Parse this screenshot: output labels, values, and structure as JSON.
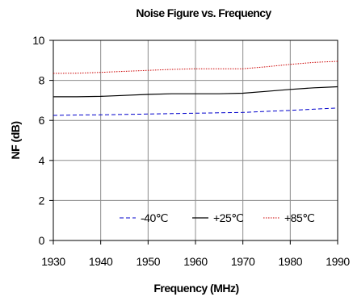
{
  "chart_data": {
    "type": "line",
    "title": "Noise Figure vs. Frequency",
    "xlabel": "Frequency (MHz)",
    "ylabel": "NF (dB)",
    "xlim": [
      1930,
      1990
    ],
    "ylim": [
      0,
      10
    ],
    "xticks": [
      "1930",
      "1940",
      "1950",
      "1960",
      "1970",
      "1980",
      "1990"
    ],
    "yticks": [
      "0",
      "2",
      "4",
      "6",
      "8",
      "10"
    ],
    "grid": true,
    "legend_position": "bottom-right",
    "series": [
      {
        "name": "-40℃",
        "color": "#0000cc",
        "style": "dashed",
        "x": [
          1930,
          1935,
          1940,
          1945,
          1950,
          1955,
          1960,
          1965,
          1970,
          1975,
          1980,
          1985,
          1990
        ],
        "y": [
          6.25,
          6.27,
          6.28,
          6.3,
          6.32,
          6.34,
          6.36,
          6.38,
          6.4,
          6.45,
          6.5,
          6.56,
          6.62
        ]
      },
      {
        "name": "+25℃",
        "color": "#000000",
        "style": "solid",
        "x": [
          1930,
          1935,
          1940,
          1945,
          1950,
          1955,
          1960,
          1965,
          1970,
          1975,
          1980,
          1985,
          1990
        ],
        "y": [
          7.18,
          7.18,
          7.2,
          7.25,
          7.3,
          7.33,
          7.33,
          7.33,
          7.36,
          7.45,
          7.55,
          7.63,
          7.68
        ]
      },
      {
        "name": "+85℃",
        "color": "#cc0000",
        "style": "dotted",
        "x": [
          1930,
          1935,
          1940,
          1945,
          1950,
          1955,
          1960,
          1965,
          1970,
          1975,
          1980,
          1985,
          1990
        ],
        "y": [
          8.35,
          8.36,
          8.4,
          8.45,
          8.5,
          8.55,
          8.58,
          8.58,
          8.58,
          8.68,
          8.8,
          8.9,
          8.95
        ]
      }
    ]
  }
}
